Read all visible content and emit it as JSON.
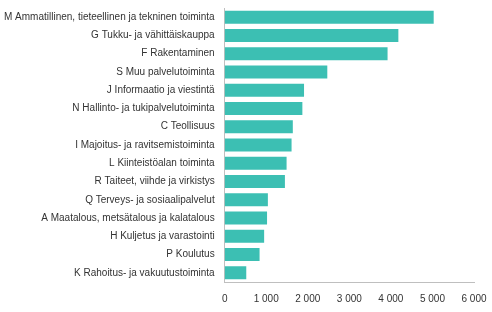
{
  "chart_data": {
    "type": "bar",
    "orientation": "horizontal",
    "categories": [
      "M Ammatillinen, tieteellinen ja tekninen toiminta",
      "G Tukku- ja vähittäiskauppa",
      "F Rakentaminen",
      "S Muu palvelutoiminta",
      "J Informaatio ja viestintä",
      "N Hallinto- ja tukipalvelutoiminta",
      "C Teollisuus",
      "I Majoitus- ja ravitsemistoiminta",
      "L Kiinteistöalan toiminta",
      "R Taiteet, viihde ja virkistys",
      "Q Terveys- ja sosiaalipalvelut",
      "A Maatalous, metsätalous ja kalatalous",
      "H Kuljetus ja varastointi",
      "P Koulutus",
      "K Rahoitus- ja vakuutustoiminta"
    ],
    "values": [
      5030,
      4180,
      3920,
      2470,
      1910,
      1870,
      1640,
      1610,
      1490,
      1450,
      1040,
      1020,
      950,
      840,
      520
    ],
    "color": "#3cbfb3",
    "xlim": [
      0,
      6000
    ],
    "xticks": [
      0,
      {
        "value": 1000,
        "label": "1 000"
      },
      {
        "value": 2000,
        "label": "2 000"
      },
      {
        "value": 3000,
        "label": "3 000"
      },
      {
        "value": 4000,
        "label": "4 000"
      },
      {
        "value": 5000,
        "label": "5 000"
      },
      {
        "value": 6000,
        "label": "6 000"
      }
    ],
    "grid": false
  }
}
